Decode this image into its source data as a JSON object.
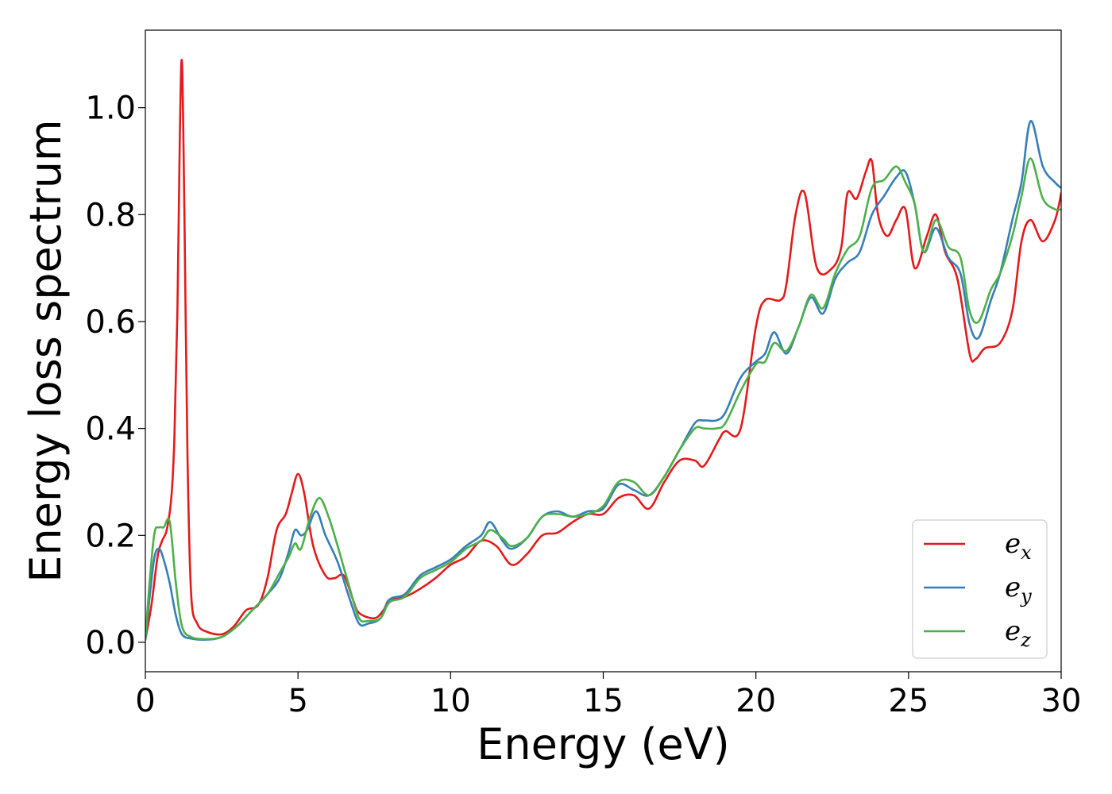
{
  "chart_data": {
    "type": "line",
    "xlabel": "Energy (eV)",
    "ylabel": "Energy loss spectrum",
    "xlim": [
      0,
      30
    ],
    "ylim": [
      -0.055,
      1.145
    ],
    "xticks": [
      0,
      5,
      10,
      15,
      20,
      25,
      30
    ],
    "yticks": [
      0.0,
      0.2,
      0.4,
      0.6,
      0.8,
      1.0
    ],
    "xtick_labels": [
      "0",
      "5",
      "10",
      "15",
      "20",
      "25",
      "30"
    ],
    "ytick_labels": [
      "0.0",
      "0.2",
      "0.4",
      "0.6",
      "0.8",
      "1.0"
    ],
    "grid": false,
    "legend_position": "lower-right",
    "series": [
      {
        "name": "e_x",
        "label_main": "e",
        "label_sub": "x",
        "color": "#e41a1c",
        "x": [
          0,
          0.2,
          0.4,
          0.55,
          0.7,
          0.85,
          0.95,
          1.05,
          1.13,
          1.2,
          1.28,
          1.38,
          1.5,
          1.7,
          2.0,
          2.5,
          2.9,
          3.3,
          3.7,
          4.0,
          4.3,
          4.6,
          4.8,
          5.0,
          5.2,
          5.5,
          5.9,
          6.2,
          6.5,
          6.8,
          7.0,
          7.5,
          7.8,
          8.0,
          8.5,
          9.0,
          9.5,
          10.0,
          10.5,
          11.0,
          11.5,
          12.0,
          12.5,
          13.0,
          13.5,
          14.0,
          14.5,
          15.0,
          15.5,
          16.0,
          16.5,
          17.0,
          17.5,
          18.0,
          18.3,
          18.8,
          19.0,
          19.5,
          20.0,
          20.3,
          20.8,
          21.0,
          21.3,
          21.6,
          22.0,
          22.5,
          22.8,
          23.0,
          23.3,
          23.6,
          23.8,
          24.0,
          24.3,
          24.6,
          24.9,
          25.2,
          25.6,
          25.9,
          26.2,
          26.6,
          27.0,
          27.2,
          27.5,
          28.0,
          28.4,
          28.7,
          29.0,
          29.4,
          29.8,
          30.0
        ],
        "values": [
          0.005,
          0.07,
          0.16,
          0.19,
          0.21,
          0.27,
          0.38,
          0.62,
          0.95,
          1.085,
          0.8,
          0.35,
          0.09,
          0.035,
          0.02,
          0.015,
          0.03,
          0.06,
          0.07,
          0.12,
          0.21,
          0.24,
          0.28,
          0.315,
          0.28,
          0.18,
          0.125,
          0.12,
          0.125,
          0.08,
          0.055,
          0.045,
          0.06,
          0.08,
          0.085,
          0.1,
          0.12,
          0.145,
          0.16,
          0.19,
          0.18,
          0.145,
          0.165,
          0.2,
          0.205,
          0.225,
          0.24,
          0.24,
          0.27,
          0.275,
          0.25,
          0.3,
          0.34,
          0.34,
          0.33,
          0.38,
          0.395,
          0.4,
          0.59,
          0.64,
          0.64,
          0.67,
          0.8,
          0.84,
          0.7,
          0.7,
          0.74,
          0.84,
          0.83,
          0.88,
          0.9,
          0.8,
          0.76,
          0.79,
          0.81,
          0.7,
          0.76,
          0.8,
          0.73,
          0.68,
          0.54,
          0.53,
          0.55,
          0.56,
          0.62,
          0.75,
          0.79,
          0.75,
          0.79,
          0.84
        ]
      },
      {
        "name": "e_y",
        "label_main": "e",
        "label_sub": "y",
        "color": "#377eb8",
        "x": [
          0,
          0.15,
          0.3,
          0.45,
          0.6,
          0.8,
          1.0,
          1.2,
          1.5,
          2.0,
          2.5,
          3.0,
          3.5,
          4.0,
          4.4,
          4.7,
          4.9,
          5.1,
          5.3,
          5.6,
          5.9,
          6.3,
          6.7,
          7.0,
          7.3,
          7.7,
          8.0,
          8.5,
          9.0,
          9.5,
          10.0,
          10.5,
          11.0,
          11.3,
          11.7,
          12.0,
          12.5,
          13.0,
          13.5,
          14.0,
          14.5,
          15.0,
          15.5,
          16.0,
          16.5,
          17.0,
          17.5,
          18.0,
          18.3,
          18.7,
          19.0,
          19.5,
          20.0,
          20.3,
          20.6,
          21.0,
          21.4,
          21.8,
          22.2,
          22.6,
          23.0,
          23.4,
          23.8,
          24.2,
          24.6,
          24.9,
          25.2,
          25.5,
          25.9,
          26.3,
          26.7,
          27.0,
          27.3,
          27.7,
          28.0,
          28.4,
          28.7,
          29.0,
          29.4,
          29.8,
          30.0
        ],
        "values": [
          0.005,
          0.09,
          0.16,
          0.175,
          0.155,
          0.11,
          0.05,
          0.015,
          0.007,
          0.005,
          0.01,
          0.03,
          0.06,
          0.09,
          0.12,
          0.17,
          0.21,
          0.2,
          0.21,
          0.245,
          0.2,
          0.15,
          0.08,
          0.035,
          0.035,
          0.045,
          0.08,
          0.09,
          0.125,
          0.14,
          0.155,
          0.18,
          0.2,
          0.225,
          0.19,
          0.175,
          0.195,
          0.235,
          0.245,
          0.235,
          0.245,
          0.25,
          0.295,
          0.285,
          0.275,
          0.31,
          0.36,
          0.41,
          0.415,
          0.415,
          0.43,
          0.495,
          0.525,
          0.54,
          0.58,
          0.54,
          0.59,
          0.645,
          0.615,
          0.68,
          0.71,
          0.73,
          0.8,
          0.835,
          0.87,
          0.88,
          0.82,
          0.73,
          0.775,
          0.72,
          0.69,
          0.595,
          0.57,
          0.64,
          0.69,
          0.79,
          0.86,
          0.975,
          0.89,
          0.86,
          0.85
        ]
      },
      {
        "name": "e_z",
        "label_main": "e",
        "label_sub": "z",
        "color": "#4daf4a",
        "x": [
          0,
          0.15,
          0.3,
          0.45,
          0.6,
          0.8,
          1.0,
          1.2,
          1.5,
          2.0,
          2.5,
          3.0,
          3.5,
          4.0,
          4.4,
          4.7,
          4.9,
          5.1,
          5.4,
          5.7,
          6.0,
          6.3,
          6.7,
          7.0,
          7.3,
          7.7,
          8.0,
          8.5,
          9.0,
          9.5,
          10.0,
          10.5,
          11.0,
          11.3,
          11.7,
          12.0,
          12.5,
          13.0,
          13.5,
          14.0,
          14.5,
          15.0,
          15.5,
          16.0,
          16.5,
          17.0,
          17.5,
          18.0,
          18.3,
          18.7,
          19.0,
          19.5,
          20.0,
          20.3,
          20.6,
          21.0,
          21.4,
          21.8,
          22.2,
          22.6,
          23.0,
          23.4,
          23.8,
          24.2,
          24.6,
          24.9,
          25.2,
          25.5,
          25.9,
          26.3,
          26.7,
          27.0,
          27.3,
          27.7,
          28.0,
          28.4,
          28.7,
          29.0,
          29.4,
          29.8,
          30.0
        ],
        "values": [
          0.005,
          0.12,
          0.205,
          0.215,
          0.215,
          0.225,
          0.11,
          0.03,
          0.01,
          0.006,
          0.01,
          0.03,
          0.06,
          0.09,
          0.13,
          0.16,
          0.185,
          0.175,
          0.235,
          0.27,
          0.235,
          0.18,
          0.1,
          0.045,
          0.04,
          0.045,
          0.075,
          0.085,
          0.12,
          0.135,
          0.15,
          0.175,
          0.19,
          0.21,
          0.195,
          0.18,
          0.195,
          0.235,
          0.24,
          0.235,
          0.24,
          0.255,
          0.3,
          0.3,
          0.275,
          0.31,
          0.36,
          0.4,
          0.4,
          0.4,
          0.41,
          0.47,
          0.52,
          0.525,
          0.56,
          0.545,
          0.59,
          0.65,
          0.625,
          0.69,
          0.735,
          0.76,
          0.85,
          0.865,
          0.89,
          0.86,
          0.82,
          0.73,
          0.79,
          0.74,
          0.72,
          0.62,
          0.6,
          0.66,
          0.69,
          0.76,
          0.835,
          0.905,
          0.83,
          0.81,
          0.81
        ]
      }
    ]
  }
}
